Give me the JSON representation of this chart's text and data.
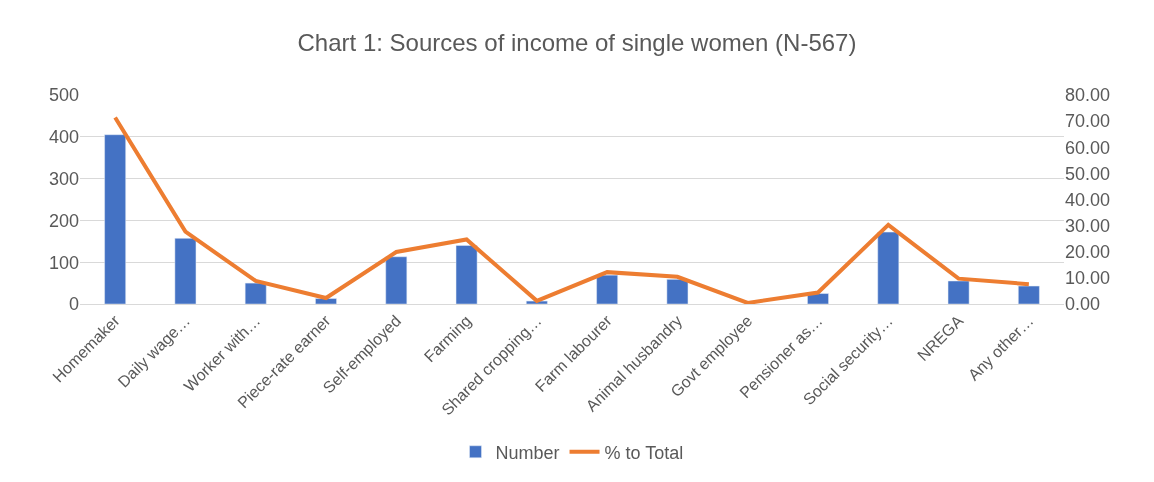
{
  "chart_data": {
    "type": "bar",
    "title": "Chart 1: Sources of income of single women (N-567)",
    "categories": [
      "Homemaker",
      "Daily wage…",
      "Worker with…",
      "Piece-rate earner",
      "Self-employed",
      "Farming",
      "Shared cropping…",
      "Farm labourer",
      "Animal husbandry",
      "Govt employee",
      "Pensioner as…",
      "Social security…",
      "NREGA",
      "Any other…"
    ],
    "series": [
      {
        "name": "Number",
        "color": "#4472c4",
        "values": [
          405,
          157,
          50,
          13,
          113,
          140,
          7,
          69,
          59,
          null,
          25,
          172,
          55,
          43
        ]
      },
      {
        "name": "% to Total",
        "color": "#ed7d31",
        "type": "line",
        "axis": "y2",
        "values": [
          71.4,
          27.7,
          8.8,
          2.3,
          19.9,
          24.7,
          1.2,
          12.2,
          10.4,
          0.4,
          4.4,
          30.3,
          9.7,
          7.6
        ]
      }
    ],
    "ylim": [
      0,
      500
    ],
    "yticks": [
      0,
      100,
      200,
      300,
      400,
      500
    ],
    "y2lim": [
      0,
      80
    ],
    "y2ticks": [
      {
        "value": 0,
        "label": "0.00"
      },
      {
        "value": 10,
        "label": "10.00"
      },
      {
        "value": 20,
        "label": "20.00"
      },
      {
        "value": 30,
        "label": "30.00"
      },
      {
        "value": 40,
        "label": "40.00"
      },
      {
        "value": 50,
        "label": "50.00"
      },
      {
        "value": 60,
        "label": "60.00"
      },
      {
        "value": 70,
        "label": "70.00"
      },
      {
        "value": 80,
        "label": "80.00"
      }
    ],
    "grid": "y",
    "legend": "bottom",
    "marker": "none",
    "line_style": "solid"
  }
}
